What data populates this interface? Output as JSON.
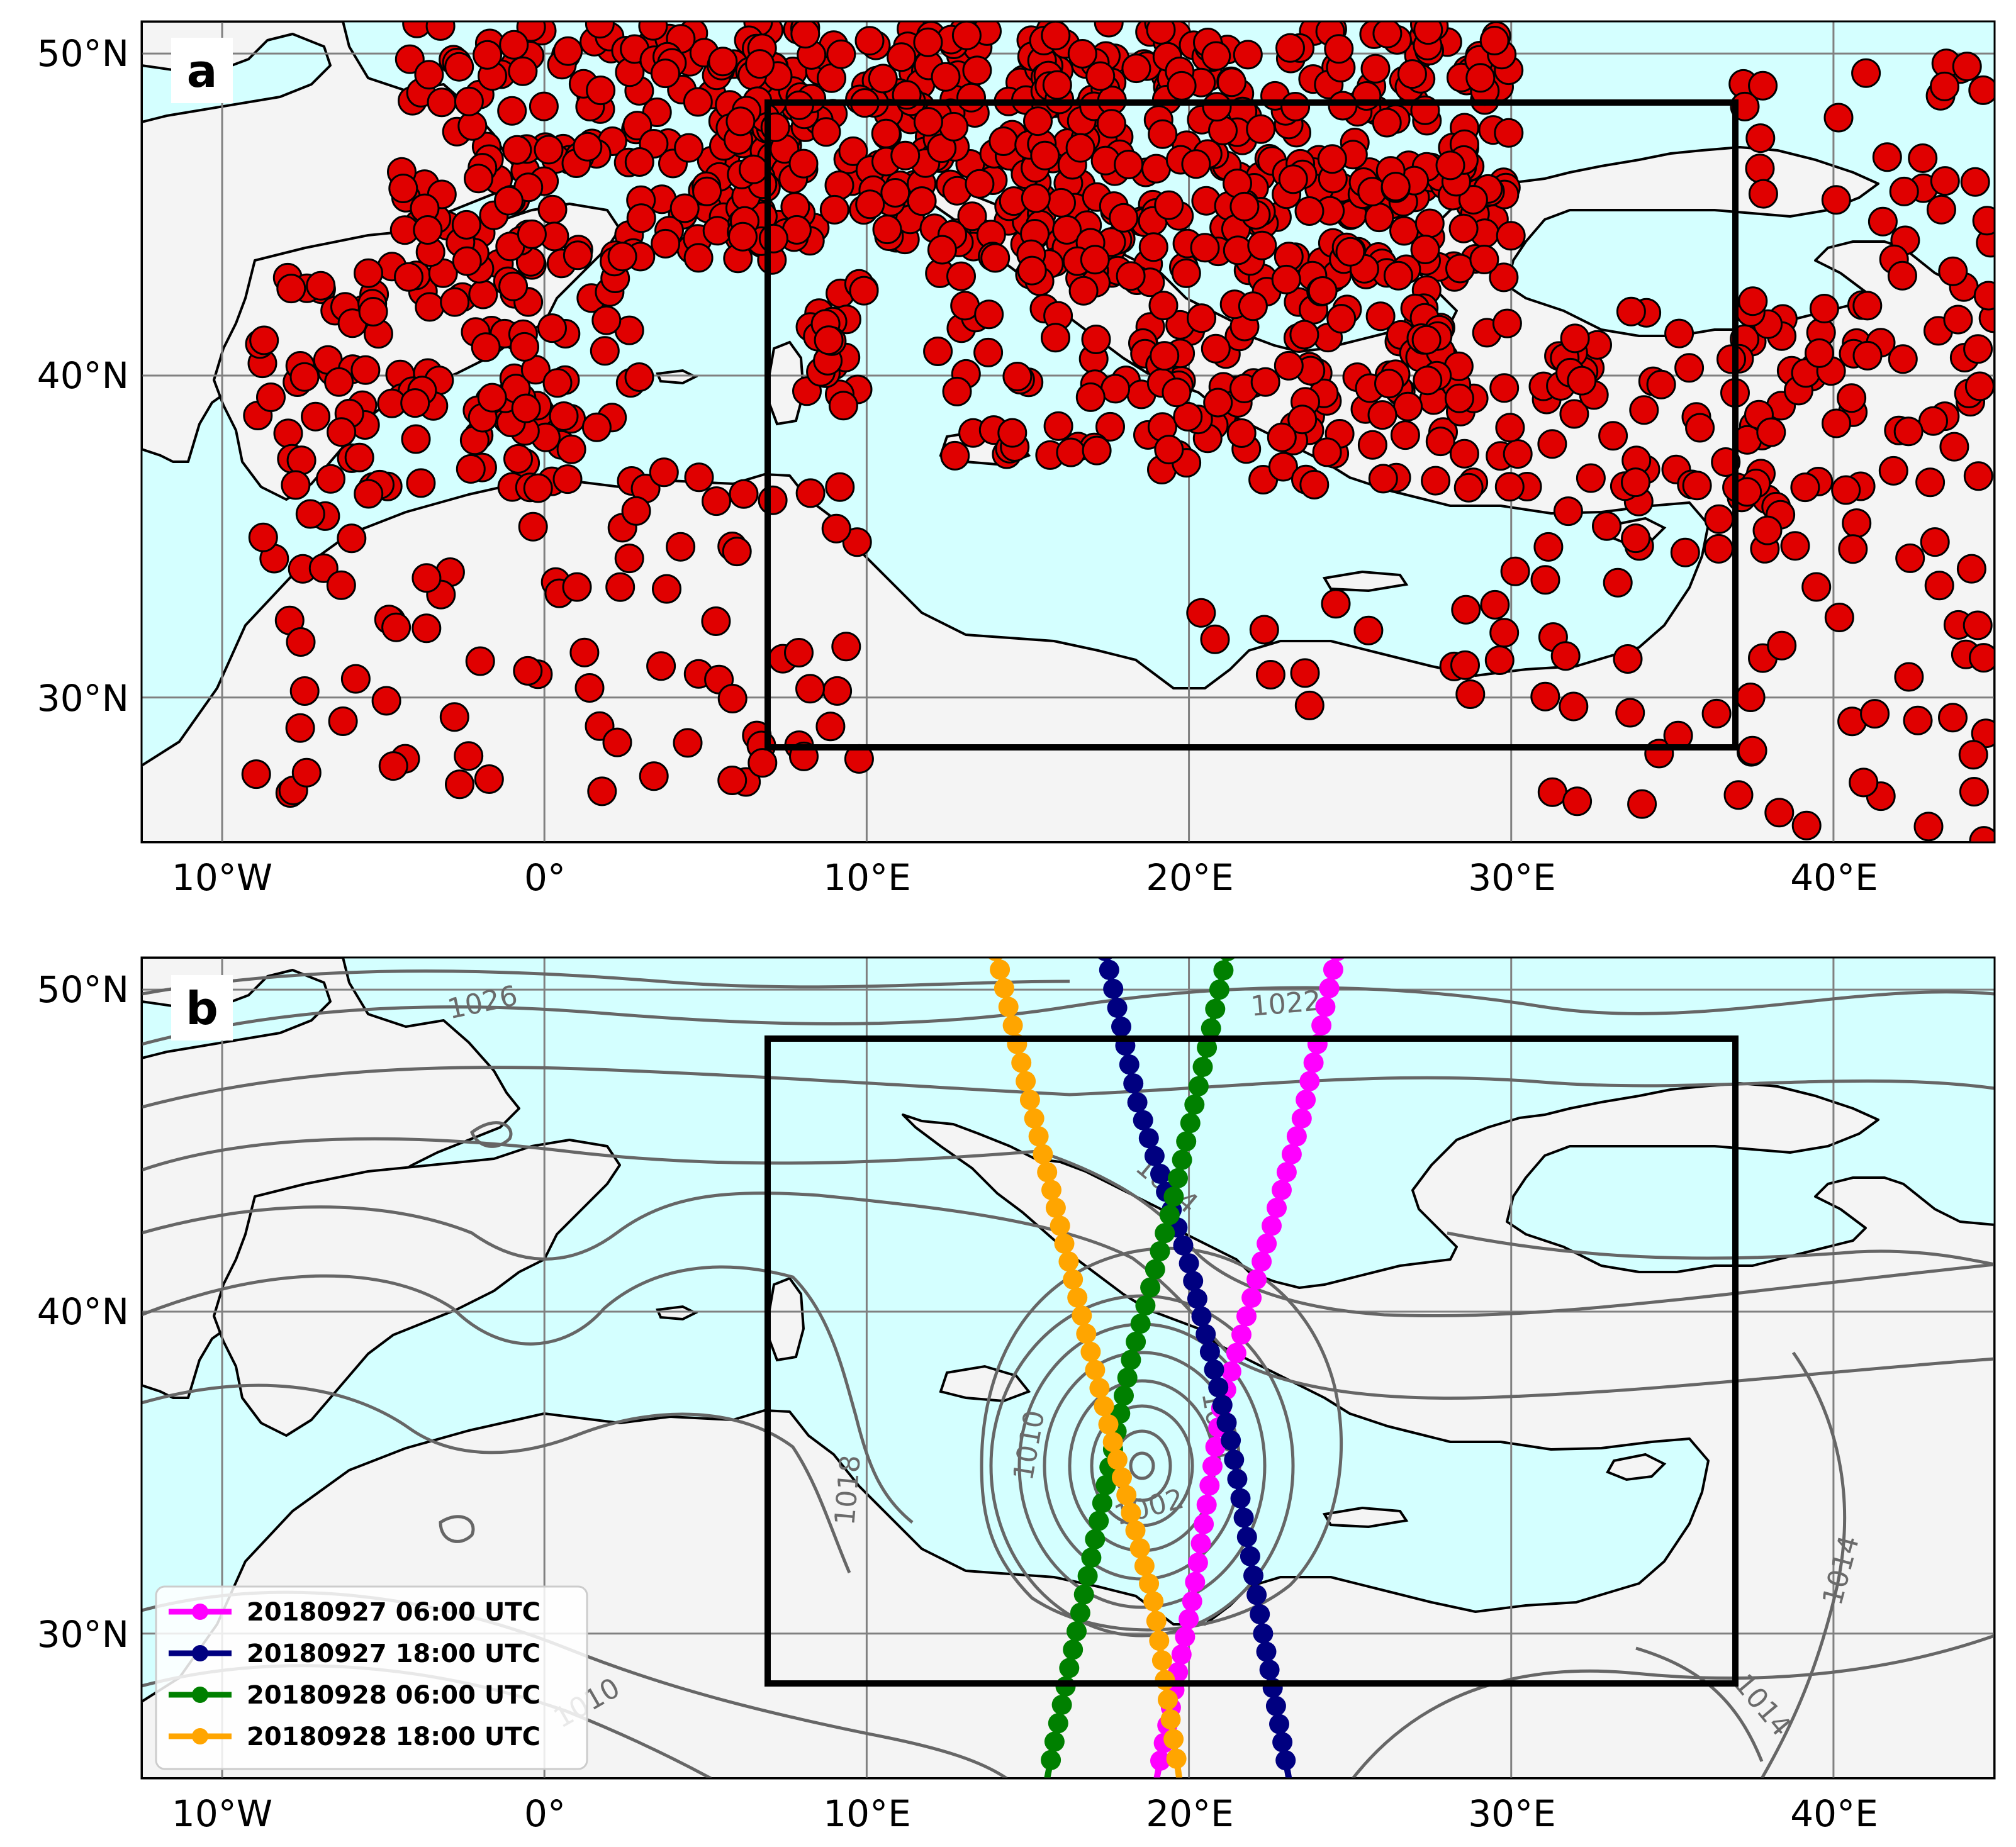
{
  "figure": {
    "panels": [
      {
        "id": "a",
        "label": "a",
        "lon_ticks": [
          "10°W",
          "0°",
          "10°E",
          "20°E",
          "30°E",
          "40°E"
        ],
        "lat_ticks": [
          "50°N",
          "40°N",
          "30°N"
        ],
        "marker_color": "#e00000"
      },
      {
        "id": "b",
        "label": "b",
        "lon_ticks": [
          "10°W",
          "0°",
          "10°E",
          "20°E",
          "30°E",
          "40°E"
        ],
        "lat_ticks": [
          "50°N",
          "40°N",
          "30°N"
        ],
        "contour_labels": [
          "1026",
          "1022",
          "1018",
          "1014",
          "1014",
          "1010",
          "1010",
          "1002",
          "1014",
          "1014"
        ],
        "legend": [
          {
            "label": "20180927 06:00 UTC",
            "color": "#ff00ff"
          },
          {
            "label": "20180927 18:00 UTC",
            "color": "#000080"
          },
          {
            "label": "20180928 06:00 UTC",
            "color": "#008000"
          },
          {
            "label": "20180928 18:00 UTC",
            "color": "#ffa500"
          }
        ]
      }
    ],
    "colors": {
      "sea": "#d4ffff",
      "land": "#f4f4f4",
      "coast": "#000000",
      "grid": "#808080",
      "contour": "#666666",
      "box": "#000000"
    },
    "extent": {
      "lon": [
        -12.5,
        45
      ],
      "lat": [
        25.5,
        51
      ]
    },
    "domain_box": {
      "lon": [
        7,
        37
      ],
      "lat": [
        28.5,
        48.5
      ]
    }
  }
}
